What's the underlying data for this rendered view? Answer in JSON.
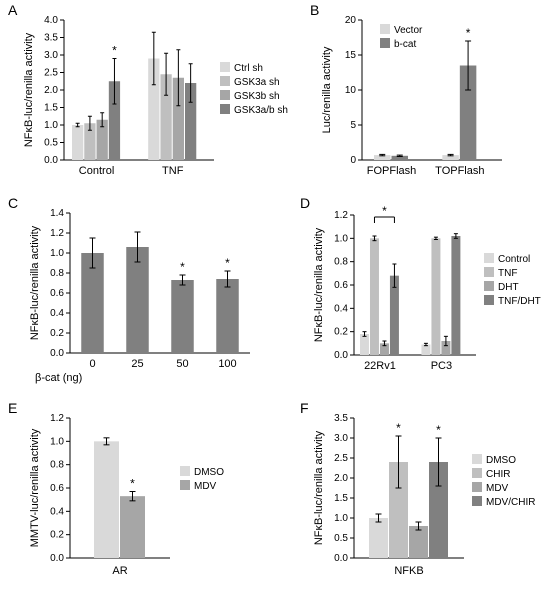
{
  "colors": {
    "bg": "#ffffff",
    "axis": "#000000",
    "text": "#000000",
    "gray1": "#d9d9d9",
    "gray2": "#bfbfbf",
    "gray3": "#a6a6a6",
    "gray4": "#808080",
    "gray5": "#595959"
  },
  "panelA": {
    "label": "A",
    "type": "bar",
    "ylabel": "NFκB-luc/renilla activity",
    "ylim": [
      0,
      4.0
    ],
    "ytick_step": 0.5,
    "groups": [
      "Control",
      "TNF"
    ],
    "series": [
      "Ctrl sh",
      "GSK3a sh",
      "GSK3b sh",
      "GSK3a/b sh"
    ],
    "series_colors": [
      "#d9d9d9",
      "#bfbfbf",
      "#a6a6a6",
      "#808080"
    ],
    "values": [
      [
        1.0,
        1.05,
        1.15,
        2.25
      ],
      [
        2.9,
        2.45,
        2.35,
        2.2
      ]
    ],
    "errors": [
      [
        0.05,
        0.2,
        0.2,
        0.65
      ],
      [
        0.75,
        0.6,
        0.8,
        0.55
      ]
    ],
    "sig": [
      {
        "group": 0,
        "bar": 3,
        "symbol": "*"
      }
    ],
    "bar_width": 0.18,
    "group_gap": 0.3
  },
  "panelB": {
    "label": "B",
    "type": "bar",
    "ylabel": "Luc/renilla activity",
    "ylim": [
      0,
      20
    ],
    "ytick_step": 5,
    "groups": [
      "FOPFlash",
      "TOPFlash"
    ],
    "series": [
      "Vector",
      "b-cat"
    ],
    "series_colors": [
      "#d9d9d9",
      "#808080"
    ],
    "values": [
      [
        0.7,
        0.6
      ],
      [
        0.7,
        13.5
      ]
    ],
    "errors": [
      [
        0.1,
        0.1
      ],
      [
        0.1,
        3.5
      ]
    ],
    "sig": [
      {
        "group": 1,
        "bar": 1,
        "symbol": "*"
      }
    ],
    "bar_width": 0.3
  },
  "panelC": {
    "label": "C",
    "type": "bar",
    "ylabel": "NFκB-luc/renilla activity",
    "ylim": [
      0,
      1.4
    ],
    "ytick_step": 0.2,
    "xlabel": "β-cat (ng)",
    "categories": [
      "0",
      "25",
      "50",
      "100"
    ],
    "color": "#808080",
    "values": [
      1.0,
      1.06,
      0.73,
      0.74
    ],
    "errors": [
      0.15,
      0.15,
      0.05,
      0.08
    ],
    "sig": [
      {
        "bar": 2,
        "symbol": "*"
      },
      {
        "bar": 3,
        "symbol": "*"
      }
    ],
    "bar_width": 0.5
  },
  "panelD": {
    "label": "D",
    "type": "bar",
    "ylabel": "NFκB-luc/renilla activity",
    "ylim": [
      0,
      1.2
    ],
    "ytick_step": 0.2,
    "groups": [
      "22Rv1",
      "PC3"
    ],
    "series": [
      "Control",
      "TNF",
      "DHT",
      "TNF/DHT"
    ],
    "series_colors": [
      "#d9d9d9",
      "#bfbfbf",
      "#a6a6a6",
      "#808080"
    ],
    "values": [
      [
        0.18,
        1.0,
        0.1,
        0.68
      ],
      [
        0.09,
        1.0,
        0.12,
        1.02
      ]
    ],
    "errors": [
      [
        0.02,
        0.02,
        0.02,
        0.1
      ],
      [
        0.01,
        0.01,
        0.04,
        0.02
      ]
    ],
    "bracket": {
      "group": 0,
      "from": 1,
      "to": 3,
      "symbol": "*"
    },
    "bar_width": 0.18
  },
  "panelE": {
    "label": "E",
    "type": "bar",
    "ylabel": "MMTV-luc/renilla activity",
    "ylim": [
      0,
      1.2
    ],
    "ytick_step": 0.2,
    "categories": [
      "AR"
    ],
    "series": [
      "DMSO",
      "MDV"
    ],
    "series_colors": [
      "#d9d9d9",
      "#a6a6a6"
    ],
    "values": [
      [
        1.0,
        0.53
      ]
    ],
    "errors": [
      [
        0.03,
        0.04
      ]
    ],
    "sig": [
      {
        "bar": 1,
        "symbol": "*"
      }
    ],
    "bar_width": 0.3
  },
  "panelF": {
    "label": "F",
    "type": "bar",
    "ylabel": "NFκB-luc/renilla activity",
    "ylim": [
      0,
      3.5
    ],
    "ytick_step": 0.5,
    "categories": [
      "NFKB"
    ],
    "series": [
      "DMSO",
      "CHIR",
      "MDV",
      "MDV/CHIR"
    ],
    "series_colors": [
      "#d9d9d9",
      "#bfbfbf",
      "#a6a6a6",
      "#808080"
    ],
    "values": [
      [
        1.0,
        2.4,
        0.8,
        2.4
      ]
    ],
    "errors": [
      [
        0.1,
        0.65,
        0.1,
        0.6
      ]
    ],
    "sig": [
      {
        "bar": 1,
        "symbol": "*"
      },
      {
        "bar": 3,
        "symbol": "*"
      }
    ],
    "bar_width": 0.2
  }
}
